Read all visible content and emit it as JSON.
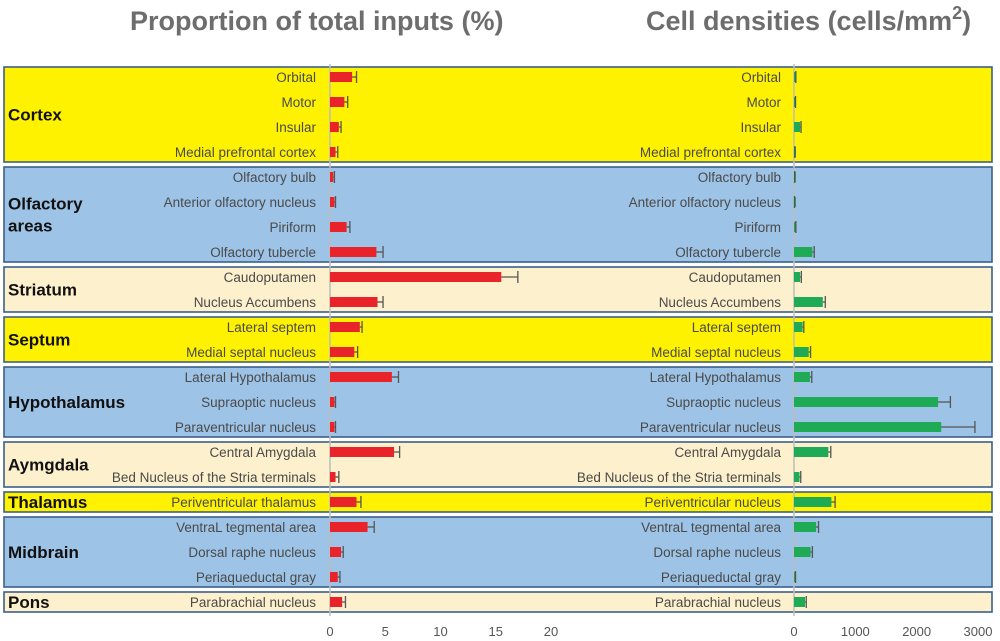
{
  "chart_data": [
    {
      "type": "bar",
      "orientation": "horizontal",
      "title": "Proportion of total inputs (%)",
      "xlim": [
        0,
        20
      ],
      "xticks": [
        0,
        5,
        10,
        15,
        20
      ],
      "bar_color": "#e8232a",
      "error_color": "#555555",
      "categories": [
        "Orbital",
        "Motor",
        "Insular",
        "Medial prefrontal cortex",
        "Olfactory bulb",
        "Anterior olfactory nucleus",
        "Piriform",
        "Olfactory tubercle",
        "Caudoputamen",
        "Nucleus Accumbens",
        "Lateral septem",
        "Medial septal nucleus",
        "Lateral Hypothalamus",
        "Supraoptic nucleus",
        "Paraventricular nucleus",
        "Central Amygdala",
        "Bed Nucleus of the Stria terminals",
        "Periventricular thalamus",
        "VentraL tegmental area",
        "Dorsal raphe nucleus",
        "Periaqueductal gray",
        "Parabrachial nucleus"
      ],
      "values": [
        2.0,
        1.3,
        0.8,
        0.5,
        0.3,
        0.4,
        1.5,
        4.2,
        15.5,
        4.3,
        2.7,
        2.2,
        5.6,
        0.4,
        0.4,
        5.8,
        0.5,
        2.4,
        3.4,
        1.0,
        0.7,
        1.1
      ],
      "errors": [
        0.4,
        0.3,
        0.2,
        0.2,
        0.1,
        0.1,
        0.3,
        0.6,
        1.5,
        0.5,
        0.2,
        0.3,
        0.6,
        0.1,
        0.1,
        0.5,
        0.3,
        0.4,
        0.6,
        0.2,
        0.2,
        0.3
      ]
    },
    {
      "type": "bar",
      "orientation": "horizontal",
      "title": "Cell densities (cells/mm",
      "title_superscript": "2",
      "title_close": ")",
      "xlim": [
        0,
        3000
      ],
      "xticks": [
        0,
        1000,
        2000,
        3000
      ],
      "bar_color": "#1faa55",
      "error_color": "#555555",
      "categories": [
        "Orbital",
        "Motor",
        "Insular",
        "Medial prefrontal cortex",
        "Olfactory bulb",
        "Anterior olfactory nucleus",
        "Piriform",
        "Olfactory tubercle",
        "Caudoputamen",
        "Nucleus Accumbens",
        "Lateral septem",
        "Medial septal nucleus",
        "Lateral Hypothalamus",
        "Supraoptic nucleus",
        "Paraventricular nucleus",
        "Central Amygdala",
        "Bed Nucleus of the Stria terminals",
        "Periventricular nucleus",
        "VentraL tegmental area",
        "Dorsal raphe nucleus",
        "Periaqueductal gray",
        "Parabrachial nucleus"
      ],
      "values": [
        20,
        15,
        100,
        10,
        5,
        5,
        20,
        300,
        100,
        470,
        140,
        240,
        260,
        2350,
        2400,
        560,
        90,
        610,
        360,
        270,
        15,
        180
      ],
      "errors": [
        10,
        10,
        15,
        5,
        5,
        3,
        10,
        30,
        20,
        40,
        20,
        30,
        30,
        200,
        550,
        40,
        20,
        60,
        40,
        30,
        10,
        20
      ]
    }
  ],
  "groups": [
    {
      "name": "Cortex",
      "name_lines": [
        "Cortex"
      ],
      "color": "#fff200",
      "count": 4
    },
    {
      "name": "Olfactory areas",
      "name_lines": [
        "Olfactory",
        "areas"
      ],
      "color": "#9dc3e6",
      "count": 4
    },
    {
      "name": "Striatum",
      "name_lines": [
        "Striatum"
      ],
      "color": "#fdf0cd",
      "count": 2
    },
    {
      "name": "Septum",
      "name_lines": [
        "Septum"
      ],
      "color": "#fff200",
      "count": 2
    },
    {
      "name": "Hypothalamus",
      "name_lines": [
        "Hypothalamus"
      ],
      "color": "#9dc3e6",
      "count": 3
    },
    {
      "name": "Aymgdala",
      "name_lines": [
        "Aymgdala"
      ],
      "color": "#fdf0cd",
      "count": 2
    },
    {
      "name": "Thalamus",
      "name_lines": [
        "Thalamus"
      ],
      "color": "#fff200",
      "count": 1
    },
    {
      "name": "Midbrain",
      "name_lines": [
        "Midbrain"
      ],
      "color": "#9dc3e6",
      "count": 3
    },
    {
      "name": "Pons",
      "name_lines": [
        "Pons"
      ],
      "color": "#fdf0cd",
      "count": 1
    }
  ]
}
